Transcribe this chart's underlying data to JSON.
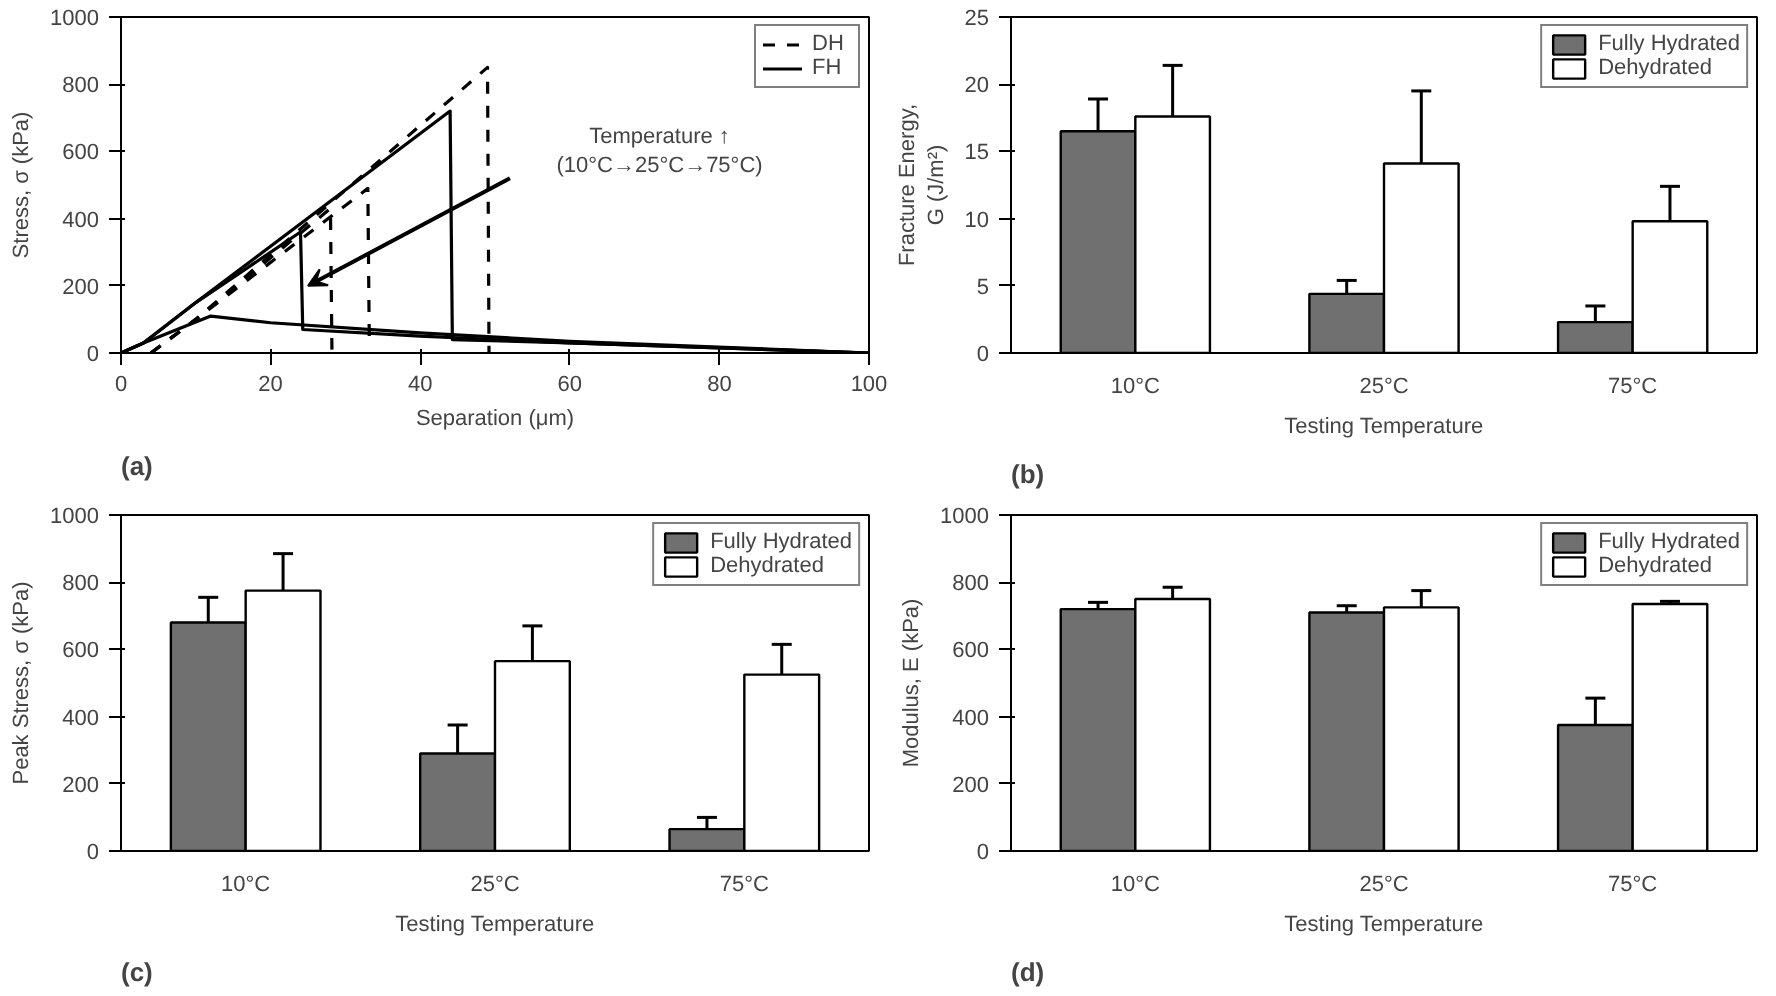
{
  "chart_data": [
    {
      "type": "line",
      "xlabel": "Separation (μm)",
      "ylabel": "Stress, σ (kPa)",
      "xlim": [
        0,
        100
      ],
      "xticks": [
        0,
        20,
        40,
        60,
        80,
        100
      ],
      "ylim": [
        0,
        1000
      ],
      "yticks": [
        0,
        200,
        400,
        600,
        800,
        1000
      ],
      "grid": false,
      "legend": "top right",
      "annotations": [
        "Temperature ↑\n(10°C→25°C→75°C)",
        "(a)"
      ],
      "series": [
        {
          "name": "DH",
          "color": "#000000",
          "line_style": "dashed",
          "x": [
            4,
            10,
            49,
            49.2
          ],
          "values": [
            0,
            100,
            850,
            0
          ]
        },
        {
          "color": "#000000",
          "line_style": "dashed",
          "x": [
            4,
            10,
            33,
            33.2
          ],
          "values": [
            0,
            100,
            490,
            20
          ]
        },
        {
          "color": "#000000",
          "line_style": "dashed",
          "x": [
            4,
            10,
            28,
            28.2
          ],
          "values": [
            0,
            100,
            430,
            10
          ]
        },
        {
          "name": "FH",
          "color": "#000000",
          "line_style": "solid",
          "x": [
            0,
            3,
            10,
            44,
            44.3,
            60,
            80,
            100
          ],
          "values": [
            0,
            30,
            150,
            720,
            40,
            30,
            15,
            0
          ]
        },
        {
          "color": "#000000",
          "line_style": "solid",
          "x": [
            0,
            3,
            10,
            24,
            24.3,
            40,
            60,
            100
          ],
          "values": [
            0,
            30,
            150,
            360,
            70,
            50,
            30,
            0
          ]
        },
        {
          "color": "#000000",
          "line_style": "solid",
          "x": [
            0,
            3,
            12,
            20,
            40,
            60,
            100
          ],
          "values": [
            0,
            30,
            110,
            90,
            60,
            35,
            0
          ]
        }
      ]
    },
    {
      "type": "bar",
      "xlabel": "Testing Temperature",
      "ylabel": "Fracture Energy,\nG (J/m²)",
      "categories": [
        "10°C",
        "25°C",
        "75°C"
      ],
      "ylim": [
        0,
        25
      ],
      "yticks": [
        0,
        5,
        10,
        15,
        20,
        25
      ],
      "grid": false,
      "legend": "top right",
      "annotations": [
        "(b)"
      ],
      "series": [
        {
          "name": "Fully Hydrated",
          "color": "#707070",
          "values": [
            16.5,
            4.4,
            2.3
          ],
          "errors": [
            2.4,
            1.0,
            1.2
          ]
        },
        {
          "name": "Dehydrated",
          "color": "#ffffff",
          "values": [
            17.6,
            14.1,
            9.8
          ],
          "errors": [
            3.8,
            5.4,
            2.6
          ]
        }
      ]
    },
    {
      "type": "bar",
      "xlabel": "Testing Temperature",
      "ylabel": "Peak Stress, σ (kPa)",
      "categories": [
        "10°C",
        "25°C",
        "75°C"
      ],
      "ylim": [
        0,
        1000
      ],
      "yticks": [
        0,
        200,
        400,
        600,
        800,
        1000
      ],
      "grid": false,
      "legend": "top right",
      "annotations": [
        "(c)"
      ],
      "series": [
        {
          "name": "Fully Hydrated",
          "color": "#707070",
          "values": [
            680,
            290,
            65
          ],
          "errors": [
            75,
            85,
            35
          ]
        },
        {
          "name": "Dehydrated",
          "color": "#ffffff",
          "values": [
            775,
            565,
            525
          ],
          "errors": [
            110,
            105,
            90
          ]
        }
      ]
    },
    {
      "type": "bar",
      "xlabel": "Testing Temperature",
      "ylabel": "Modulus, E (kPa)",
      "categories": [
        "10°C",
        "25°C",
        "75°C"
      ],
      "ylim": [
        0,
        1000
      ],
      "yticks": [
        0,
        200,
        400,
        600,
        800,
        1000
      ],
      "grid": false,
      "legend": "top right",
      "annotations": [
        "(d)"
      ],
      "series": [
        {
          "name": "Fully Hydrated",
          "color": "#707070",
          "values": [
            720,
            710,
            375
          ],
          "errors": [
            20,
            20,
            80
          ]
        },
        {
          "name": "Dehydrated",
          "color": "#ffffff",
          "values": [
            750,
            725,
            735
          ],
          "errors": [
            35,
            50,
            8
          ]
        }
      ]
    }
  ]
}
